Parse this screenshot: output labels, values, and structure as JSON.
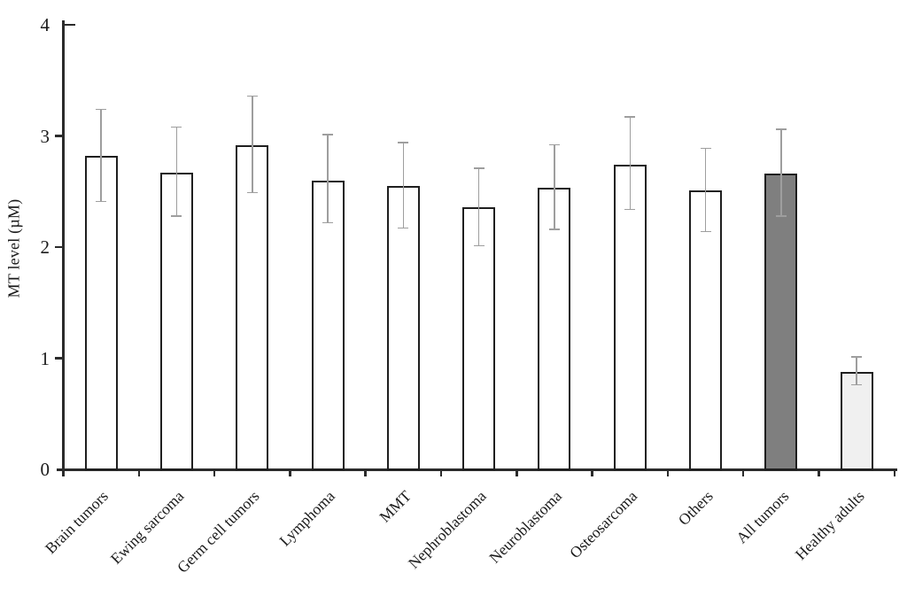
{
  "chart_data": {
    "type": "bar",
    "title": "",
    "xlabel": "",
    "ylabel": "MT level (µM)",
    "ylim": [
      0,
      4
    ],
    "yticks": [
      0,
      1,
      2,
      3,
      4
    ],
    "grid": false,
    "legend": null,
    "categories": [
      "Brain tumors",
      "Ewing sarcoma",
      "Germ cell tumors",
      "Lymphoma",
      "MMT",
      "Nephroblastoma",
      "Neuroblastoma",
      "Osteosarcoma",
      "Others",
      "All tumors",
      "Healthy adults"
    ],
    "series": [
      {
        "name": "MT level",
        "values": [
          2.82,
          2.67,
          2.92,
          2.6,
          2.55,
          2.36,
          2.53,
          2.74,
          2.51,
          2.66,
          0.88
        ]
      }
    ],
    "error_bars": {
      "upper": [
        3.24,
        3.08,
        3.36,
        3.01,
        2.94,
        2.71,
        2.92,
        3.17,
        2.89,
        3.06,
        1.01
      ],
      "lower": [
        2.41,
        2.28,
        2.49,
        2.22,
        2.17,
        2.01,
        2.16,
        2.34,
        2.14,
        2.28,
        0.76
      ]
    },
    "bar_fills": [
      "#ffffff",
      "#ffffff",
      "#ffffff",
      "#ffffff",
      "#ffffff",
      "#ffffff",
      "#ffffff",
      "#ffffff",
      "#ffffff",
      "#7f7f7f",
      "#f0f0f0"
    ],
    "colors": {
      "bar_border": "#1f1f1f",
      "error_bar": "#9e9e9e",
      "axis": "#2b2b2b",
      "text": "#1a1a1a",
      "background": "#ffffff"
    }
  }
}
